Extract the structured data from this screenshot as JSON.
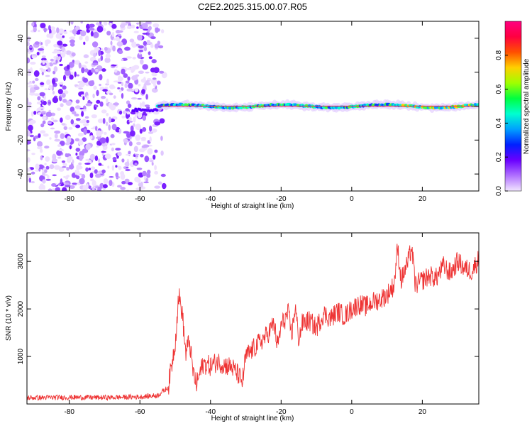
{
  "chart_data": [
    {
      "type": "heatmap",
      "title": "C2E2.2025.315.00.07.R05",
      "xlabel": "Height of straight line (km)",
      "ylabel": "Frequency (Hz)",
      "xlim": [
        -92,
        36
      ],
      "ylim": [
        -50,
        50
      ],
      "xticks": [
        -80,
        -60,
        -40,
        -20,
        0,
        20
      ],
      "yticks": [
        40,
        20,
        0,
        -20,
        -40
      ],
      "noise_region_x": [
        -92,
        -55
      ],
      "signal_onset_x": -55,
      "signal_frequency_hz": 0,
      "colorbar": {
        "label": "Normalized spectral amplitude",
        "range": [
          0.0,
          1.0
        ],
        "ticks": [
          "0.0",
          "0.2",
          "0.4",
          "0.6",
          "0.8"
        ],
        "colors": [
          "#f2e6ff",
          "#b070ff",
          "#6a00ff",
          "#0020ff",
          "#00a0ff",
          "#00ffd0",
          "#00ff40",
          "#a0ff00",
          "#ffd000",
          "#ff5000",
          "#ff0040",
          "#ff0080"
        ]
      }
    },
    {
      "type": "line",
      "xlabel": "Height of straight line (km)",
      "ylabel": "SNR (10 * v/v)",
      "xlim": [
        -92,
        36
      ],
      "ylim": [
        0,
        3600
      ],
      "xticks": [
        -80,
        -60,
        -40,
        -20,
        0,
        20
      ],
      "yticks": [
        1000,
        2000,
        3000
      ],
      "color": "#ee3333",
      "series": [
        {
          "name": "SNR",
          "x": [
            -92,
            -80,
            -70,
            -60,
            -55,
            -52,
            -50,
            -49,
            -48,
            -47,
            -46,
            -45,
            -44,
            -43,
            -42,
            -40,
            -38,
            -36,
            -34,
            -32,
            -31,
            -30,
            -28,
            -26,
            -24,
            -22,
            -21,
            -20,
            -18,
            -17,
            -16,
            -15,
            -14,
            -12,
            -10,
            -8,
            -6,
            -4,
            -2,
            0,
            2,
            4,
            6,
            8,
            10,
            12,
            13,
            14,
            16,
            17,
            18,
            20,
            22,
            24,
            26,
            28,
            30,
            32,
            34,
            36
          ],
          "y": [
            130,
            140,
            135,
            150,
            180,
            350,
            1300,
            2300,
            1900,
            1050,
            1350,
            700,
            400,
            650,
            850,
            800,
            900,
            820,
            780,
            600,
            450,
            1000,
            1150,
            1300,
            1450,
            1700,
            1200,
            1650,
            1900,
            1450,
            2050,
            1350,
            1700,
            1750,
            1600,
            1900,
            1800,
            1950,
            1850,
            2000,
            2100,
            2050,
            2150,
            2200,
            2300,
            2500,
            3300,
            2600,
            3000,
            3300,
            2500,
            2600,
            2700,
            2650,
            2900,
            2750,
            3000,
            2850,
            2800,
            3050
          ]
        }
      ]
    }
  ]
}
